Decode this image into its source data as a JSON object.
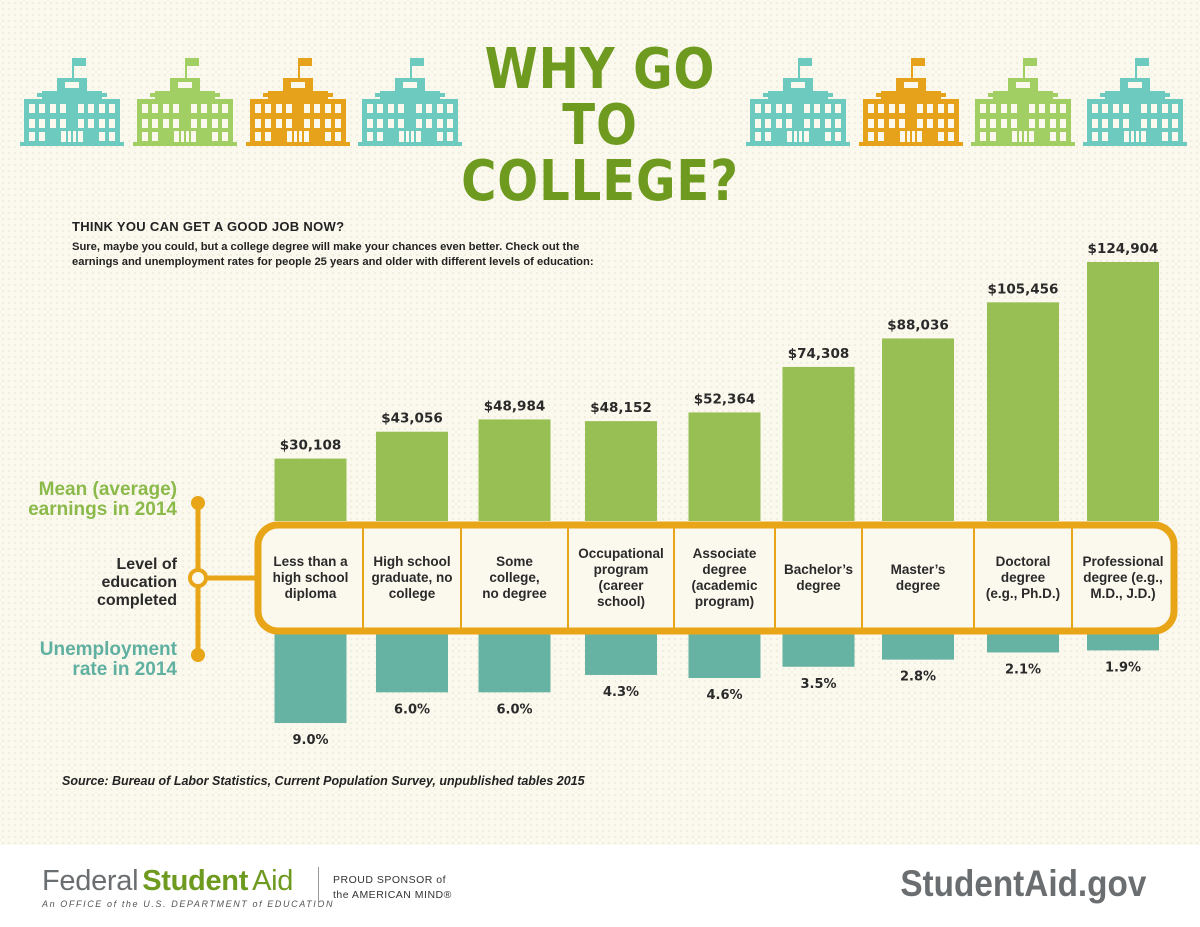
{
  "title": {
    "line1": "WHY GO TO",
    "line2": "COLLEGE?"
  },
  "intro": {
    "heading": "THINK YOU CAN GET A GOOD JOB NOW?",
    "text": "Sure, maybe you could, but a college degree will make your chances even better. Check out the earnings and unemployment rates for people 25 years and older with different levels of education:"
  },
  "colors": {
    "earnings": "#97bf54",
    "unemployment": "#67b3a3",
    "frame": "#e8a518",
    "title": "#6e9a1f",
    "teal": "#6ccbbe",
    "lime": "#a1cf63",
    "orange": "#e7a21b"
  },
  "buildings": [
    "teal",
    "lime",
    "orange",
    "teal",
    "teal",
    "orange",
    "lime",
    "teal"
  ],
  "labels": {
    "earnings": [
      "Mean (average)",
      "earnings in 2014"
    ],
    "level": [
      "Level of",
      "education",
      "completed"
    ],
    "unemployment": [
      "Unemployment",
      "rate in 2014"
    ]
  },
  "chart_data": {
    "type": "bar",
    "title": "Why go to college?",
    "categories": [
      "Less than a high school diploma",
      "High school graduate, no college",
      "Some college, no degree",
      "Occupational program (career school)",
      "Associate degree (academic program)",
      "Bachelor's degree",
      "Master's degree",
      "Doctoral degree (e.g., Ph.D.)",
      "Professional degree (e.g., M.D., J.D.)"
    ],
    "category_lines": [
      [
        "Less than a",
        "high school",
        "diploma"
      ],
      [
        "High school",
        "graduate, no",
        "college"
      ],
      [
        "Some",
        "college,",
        "no degree"
      ],
      [
        "Occupational",
        "program",
        "(career",
        "school)"
      ],
      [
        "Associate",
        "degree",
        "(academic",
        "program)"
      ],
      [
        "Bachelor’s",
        "degree"
      ],
      [
        "Master’s",
        "degree"
      ],
      [
        "Doctoral",
        "degree",
        "(e.g., Ph.D.)"
      ],
      [
        "Professional",
        "degree (e.g.,",
        "M.D., J.D.)"
      ]
    ],
    "series": [
      {
        "name": "Mean (average) earnings in 2014",
        "values": [
          30108,
          43056,
          48984,
          48152,
          52364,
          74308,
          88036,
          105456,
          124904
        ],
        "labels": [
          "$30,108",
          "$43,056",
          "$48,984",
          "$48,152",
          "$52,364",
          "$74,308",
          "$88,036",
          "$105,456",
          "$124,904"
        ]
      },
      {
        "name": "Unemployment rate in 2014",
        "values": [
          9.0,
          6.0,
          6.0,
          4.3,
          4.6,
          3.5,
          2.8,
          2.1,
          1.9
        ],
        "labels": [
          "9.0%",
          "6.0%",
          "6.0%",
          "4.3%",
          "4.6%",
          "3.5%",
          "2.8%",
          "2.1%",
          "1.9%"
        ]
      }
    ]
  },
  "source": "Source: Bureau of Labor Statistics, Current Population Survey, unpublished tables 2015",
  "footer": {
    "logo": [
      "Federal",
      "Student",
      "Aid"
    ],
    "tagline": "An OFFICE of the U.S. DEPARTMENT of EDUCATION",
    "sponsor_line1": "PROUD SPONSOR of",
    "sponsor_line2": "the AMERICAN MIND®",
    "site": "StudentAid.gov"
  }
}
